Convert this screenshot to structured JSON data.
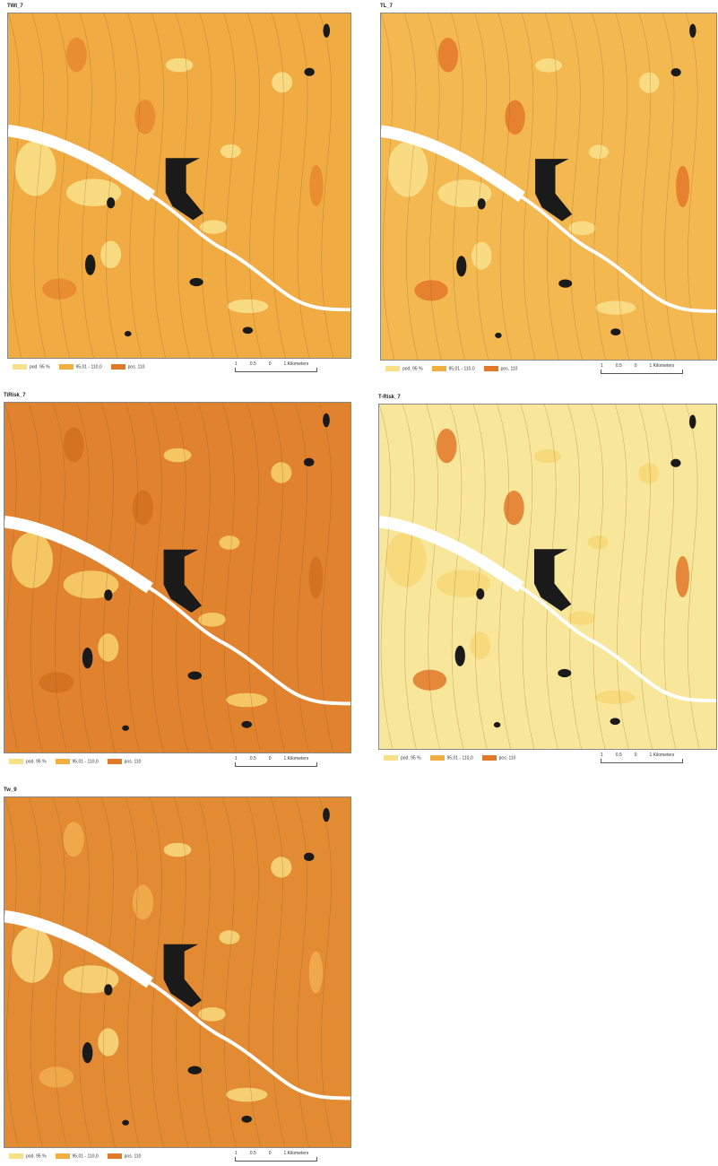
{
  "panels": [
    {
      "title": "TWI_7",
      "legend": [
        "pod. 95 %",
        "95,01 - 110,0",
        "pos. 110"
      ],
      "scale": [
        "1",
        "0.5",
        "0",
        "1 Kilometers"
      ]
    },
    {
      "title": "TL_7",
      "legend": [
        "pod. 95 %",
        "95,01 - 110,0",
        "pos. 110"
      ],
      "scale": [
        "1",
        "0.5",
        "0",
        "1 Kilometers"
      ]
    },
    {
      "title": "TiRisk_7",
      "legend": [
        "pod. 95 %",
        "95,01 - 110,0",
        "pos. 110"
      ],
      "scale": [
        "1",
        "0.5",
        "0",
        "1 Kilometers"
      ]
    },
    {
      "title": "T-Risk_7",
      "legend": [
        "pod. 95 %",
        "95,01 - 110,0",
        "pos. 110"
      ],
      "scale": [
        "1",
        "0.5",
        "0",
        "1 Kilometers"
      ]
    },
    {
      "title": "Tw_9",
      "legend": [
        "pod. 95 %",
        "95,01 - 110,0",
        "pos. 110"
      ],
      "scale": [
        "1",
        "0.5",
        "0",
        "1 Kilometers"
      ]
    }
  ]
}
